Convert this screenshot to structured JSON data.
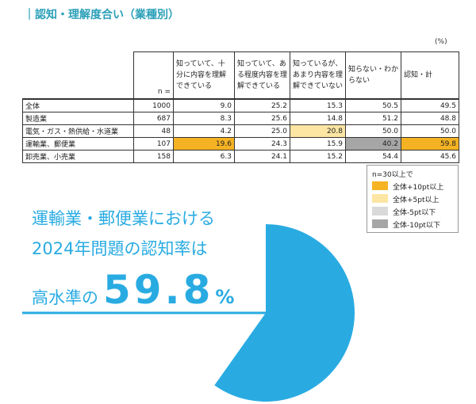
{
  "header": {
    "title": "｜認知・理解度合い（業種別）"
  },
  "table": {
    "unit": "(%)",
    "columns": [
      "n =",
      "知っていて、十分に内容を理解できている",
      "知っていて、ある程度内容を理解できている",
      "知っているが、あまり内容を理解できていない",
      "知らない・わからない",
      "認知・計"
    ],
    "rows": [
      {
        "label": "全体",
        "cells": [
          "1000",
          "9.0",
          "25.2",
          "15.3",
          "50.5",
          "49.5"
        ],
        "marks": [
          null,
          null,
          null,
          null,
          null,
          null
        ]
      },
      {
        "label": "製造業",
        "cells": [
          "687",
          "8.3",
          "25.6",
          "14.8",
          "51.2",
          "48.8"
        ],
        "marks": [
          null,
          null,
          null,
          null,
          null,
          null
        ]
      },
      {
        "label": "電気・ガス・熱供給・水道業",
        "cells": [
          "48",
          "4.2",
          "25.0",
          "20.8",
          "50.0",
          "50.0"
        ],
        "marks": [
          null,
          null,
          null,
          1,
          null,
          null
        ]
      },
      {
        "label": "運輸業、郵便業",
        "cells": [
          "107",
          "19.6",
          "24.3",
          "15.9",
          "40.2",
          "59.8"
        ],
        "marks": [
          null,
          0,
          null,
          null,
          3,
          0
        ]
      },
      {
        "label": "卸売業、小売業",
        "cells": [
          "158",
          "6.3",
          "24.1",
          "15.2",
          "54.4",
          "45.6"
        ],
        "marks": [
          null,
          null,
          null,
          null,
          null,
          null
        ]
      }
    ]
  },
  "legend": {
    "title": "n=30以上で",
    "items": [
      {
        "label": "全体+10pt以上",
        "color": "#f5b324"
      },
      {
        "label": "全体+5pt以上",
        "color": "#fde5a3"
      },
      {
        "label": "全体-5pt以下",
        "color": "#d9d9d9"
      },
      {
        "label": "全体-10pt以下",
        "color": "#a6a6a6"
      }
    ]
  },
  "highlight": {
    "lines": [
      "運輸業・郵便業における",
      "2024年問題の認知率は"
    ],
    "prefix": "高水準の",
    "value": 59.8,
    "unit": "%",
    "color": "#29abe2"
  }
}
